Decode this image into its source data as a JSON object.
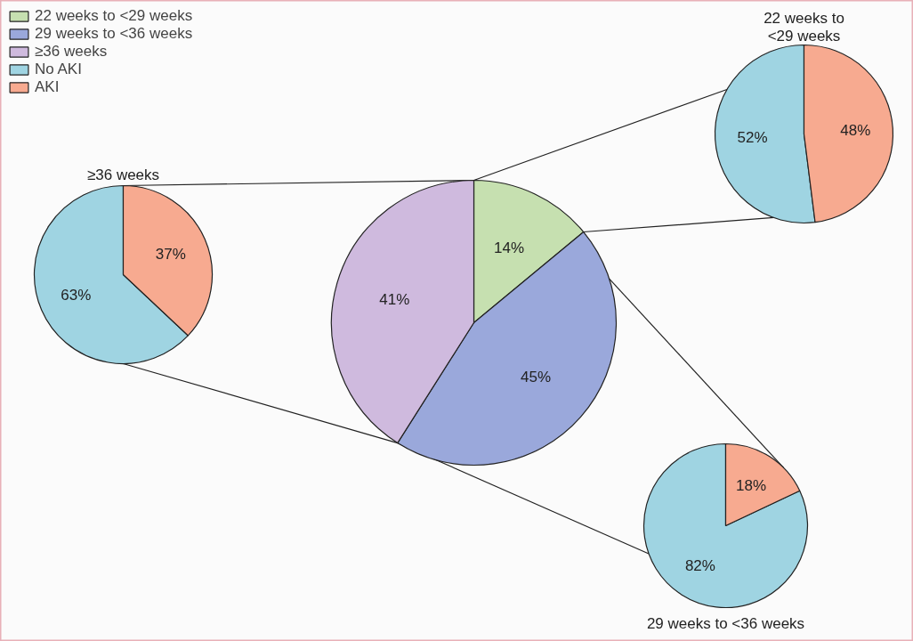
{
  "chart_data": [
    {
      "type": "pie",
      "categories": [
        "22 weeks to <29 weeks",
        "29 weeks to <36 weeks",
        "≥36 weeks"
      ],
      "values": [
        14,
        45,
        41
      ],
      "colors": [
        "#c6e0b0",
        "#9aa8db",
        "#cfbade"
      ],
      "value_labels": [
        "14%",
        "45%",
        "41%"
      ],
      "legend": "top left"
    },
    {
      "type": "pie",
      "title": "22 weeks to\n<29 weeks",
      "categories": [
        "No AKI",
        "AKI"
      ],
      "values": [
        52,
        48
      ],
      "colors": [
        "#9fd4e2",
        "#f7aa90"
      ],
      "value_labels": [
        "52%",
        "48%"
      ],
      "legend": "top left"
    },
    {
      "type": "pie",
      "title": "≥36 weeks",
      "categories": [
        null,
        null
      ],
      "values": [
        63,
        37
      ],
      "colors": [
        "#9fd4e2",
        "#f7aa90"
      ],
      "value_labels": [
        "63%",
        "37%"
      ]
    },
    {
      "type": "pie",
      "title": "29 weeks to <36 weeks",
      "categories": [
        null,
        null
      ],
      "values": [
        82,
        18
      ],
      "colors": [
        "#9fd4e2",
        "#f7aa90"
      ],
      "value_labels": [
        "82%",
        "18%"
      ]
    }
  ]
}
